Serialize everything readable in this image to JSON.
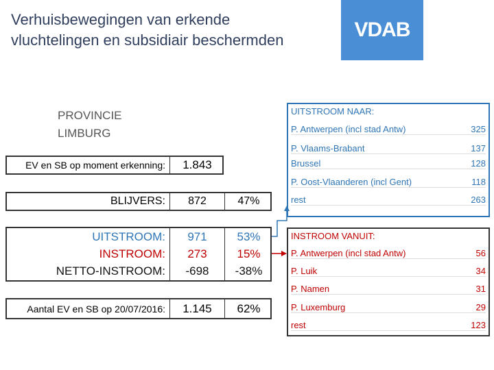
{
  "header": {
    "title_lines": [
      "Verhuisbewegingen van erkende",
      "vluchtelingen en subsidiair beschermden"
    ],
    "logo": "VDAB"
  },
  "province": {
    "lines": [
      "PROVINCIE",
      "LIMBURG"
    ]
  },
  "left": {
    "erkenning": {
      "label": "EV en SB  op moment erkenning:",
      "value": "1.843"
    },
    "blijvers": {
      "label": "BLIJVERS:",
      "value": "872",
      "pct": "47%"
    },
    "flows": [
      {
        "label": "UITSTROOM:",
        "value": "971",
        "pct": "53%"
      },
      {
        "label": "INSTROOM:",
        "value": "273",
        "pct": "15%"
      },
      {
        "label": "NETTO-INSTROOM:",
        "value": "-698",
        "pct": "-38%"
      }
    ],
    "current": {
      "label": "Aantal EV en SB op 20/07/2016:",
      "value": "1.145",
      "pct": "62%"
    }
  },
  "outflow": {
    "title": "UITSTROOM NAAR:",
    "rows": [
      [
        "P. Antwerpen (incl stad Antw)",
        "325"
      ],
      [
        "P. Vlaams-Brabant",
        "137"
      ],
      [
        "Brussel",
        "128"
      ],
      [
        "P. Oost-Vlaanderen (incl Gent)",
        "118"
      ],
      [
        "rest",
        "263"
      ]
    ]
  },
  "inflow": {
    "title": "INSTROOM VANUIT:",
    "rows": [
      [
        "P. Antwerpen (incl stad Antw)",
        "56"
      ],
      [
        "P. Luik",
        "34"
      ],
      [
        "P. Namen",
        "31"
      ],
      [
        "P. Luxemburg",
        "29"
      ],
      [
        "rest",
        "123"
      ]
    ]
  }
}
